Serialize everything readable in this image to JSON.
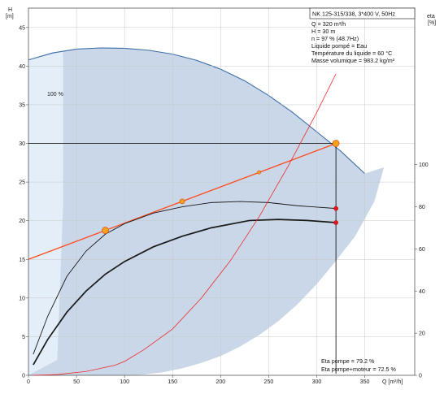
{
  "chart_data": {
    "type": "line",
    "title": "NK 125-315/338, 3*400 V, 50Hz",
    "info_lines": [
      "Q = 320 m³/h",
      "H = 30 m",
      "n = 97 % (48.7Hz)",
      "Liquide pompé = Eau",
      "Température du liquide = 60 °C",
      "Masse volumique = 983.2 kg/m³"
    ],
    "left_axis": {
      "label_line1": "H",
      "label_line2": "[m]",
      "min": 0,
      "max": 47.5,
      "ticks": [
        "0",
        "5",
        "10",
        "15",
        "20",
        "25",
        "30",
        "35",
        "40",
        "45"
      ]
    },
    "right_axis": {
      "label_line1": "eta",
      "label_line2": "[%]",
      "min": 0,
      "max": 100,
      "ticks": [
        "0",
        "20",
        "40",
        "60",
        "80",
        "100"
      ]
    },
    "x_axis": {
      "label": "Q [m³/h]",
      "min": 0,
      "max": 402,
      "ticks": [
        "0",
        "50",
        "100",
        "150",
        "200",
        "250",
        "300",
        "350"
      ]
    },
    "grid": true,
    "curve_label_100": "100 %",
    "operating_point": {
      "q": 320,
      "h": 30
    },
    "eta_pompe_label": "Eta pompe = 79.2 %",
    "eta_pompe_moteur_label": "Eta pompe+moteur = 72.5 %",
    "series": [
      {
        "name": "",
        "axis": "left",
        "kind": "envelope_upper",
        "x": [
          0,
          25,
          50,
          75,
          100,
          125,
          150,
          175,
          200,
          225,
          250,
          275,
          300,
          325,
          350,
          370
        ],
        "y": [
          40.8,
          41.7,
          42.2,
          42.35,
          42.3,
          42.05,
          41.55,
          40.75,
          39.6,
          38.1,
          36.2,
          34.0,
          31.5,
          29.0,
          26.1,
          26.9
        ]
      },
      {
        "name": "",
        "axis": "left",
        "kind": "envelope_lower",
        "x": [
          360,
          340,
          320,
          300,
          280,
          260,
          240,
          220,
          200,
          180,
          160,
          140,
          120,
          100,
          80,
          60,
          50
        ],
        "y": [
          22.5,
          18.0,
          14.8,
          11.8,
          9.2,
          7.0,
          5.2,
          3.7,
          2.5,
          1.6,
          0.9,
          0.4,
          0.1,
          0.0,
          0.0,
          0.0,
          0.0
        ]
      },
      {
        "name": "",
        "axis": "left",
        "kind": "system",
        "x": [
          0,
          80,
          160,
          240,
          320
        ],
        "y": [
          15.0,
          18.75,
          22.5,
          26.25,
          30.0
        ]
      },
      {
        "name": "",
        "axis": "right",
        "kind": "eta_pump",
        "x": [
          5,
          20,
          40,
          60,
          80,
          100,
          130,
          160,
          190,
          220,
          250,
          280,
          320
        ],
        "y": [
          10,
          28,
          47,
          59,
          67,
          72,
          77,
          80,
          82,
          82.5,
          82,
          80.5,
          79.2
        ]
      },
      {
        "name": "",
        "axis": "right",
        "kind": "eta_pump_motor",
        "x": [
          5,
          20,
          40,
          60,
          80,
          100,
          130,
          160,
          190,
          230,
          260,
          290,
          320
        ],
        "y": [
          5,
          17,
          30,
          40,
          48,
          54,
          61,
          66,
          70,
          73.5,
          74,
          73.5,
          72.5
        ]
      },
      {
        "name": "",
        "axis": "left",
        "kind": "power",
        "x": [
          5,
          30,
          60,
          90,
          100,
          120,
          150,
          180,
          210,
          240,
          270,
          300,
          320
        ],
        "y": [
          0.0,
          0.1,
          0.5,
          1.3,
          1.8,
          3.3,
          6.0,
          10.0,
          14.8,
          20.5,
          27.0,
          34.0,
          39.0
        ]
      }
    ],
    "markers": [
      {
        "x": 80,
        "h": 18.75,
        "r": 4
      },
      {
        "x": 160,
        "h": 22.5,
        "r": 3
      },
      {
        "x": 240,
        "h": 26.25,
        "r": 2
      },
      {
        "x": 320,
        "h": 30.0,
        "r": 4
      }
    ],
    "eta_markers": [
      {
        "x": 320,
        "eta": 79.2
      },
      {
        "x": 320,
        "eta": 72.5
      }
    ]
  }
}
